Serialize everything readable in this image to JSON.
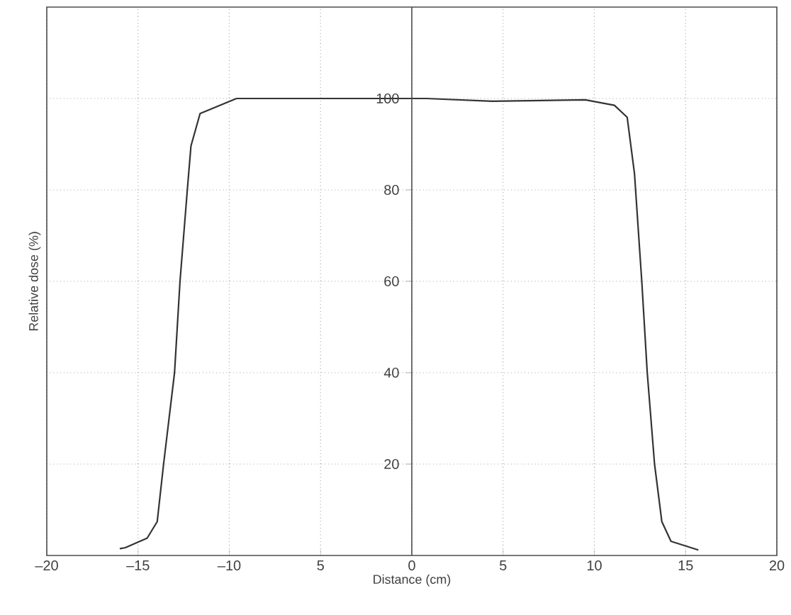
{
  "chart_data": {
    "type": "line",
    "xlabel": "Distance (cm)",
    "ylabel": "Relative dose (%)",
    "xlim": [
      -20,
      20
    ],
    "ylim": [
      0,
      120
    ],
    "xticks": [
      {
        "value": -20,
        "label": "–20"
      },
      {
        "value": -15,
        "label": "–15"
      },
      {
        "value": -10,
        "label": "–10"
      },
      {
        "value": -5,
        "label": "5"
      },
      0,
      5,
      10,
      15,
      20
    ],
    "yticks": [
      20,
      40,
      60,
      80,
      100
    ],
    "grid": true,
    "line_style": "solid",
    "series": [
      {
        "color": "#333333",
        "x": [
          -16.0,
          -15.7,
          -14.5,
          -13.95,
          -13.6,
          -13.0,
          -12.7,
          -12.3,
          -12.1,
          -11.6,
          -10.1,
          -9.6,
          -6.6,
          -3,
          0.8,
          4.4,
          9.5,
          11.1,
          11.8,
          12.2,
          12.6,
          12.9,
          13.3,
          13.7,
          14.2,
          15.7
        ],
        "values": [
          1.5,
          1.7,
          3.8,
          7.4,
          20,
          40,
          60,
          80,
          89.6,
          96.7,
          99.2,
          100,
          100,
          100,
          100,
          99.4,
          99.7,
          98.5,
          95.9,
          83.6,
          60,
          40,
          20,
          7.4,
          3.1,
          1.2
        ]
      }
    ]
  }
}
